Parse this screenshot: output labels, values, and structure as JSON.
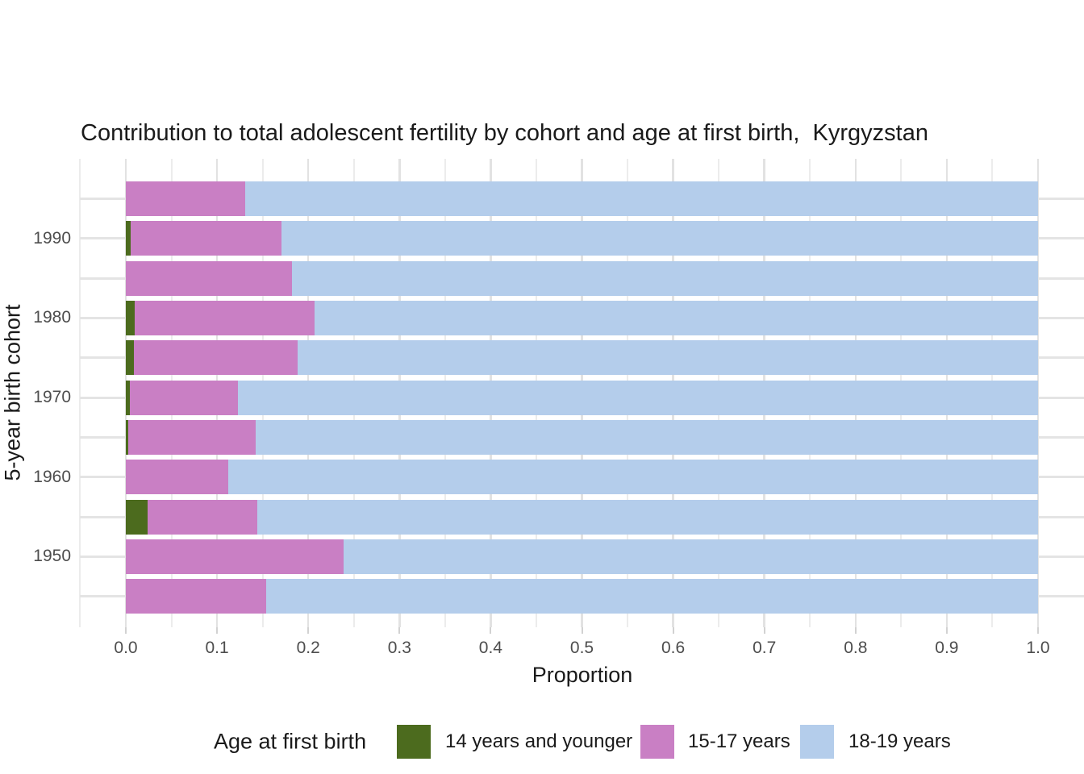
{
  "chart_data": {
    "type": "bar",
    "orientation": "horizontal",
    "stacked": true,
    "title": "Contribution to total adolescent fertility by cohort and age at first birth,  Kyrgyzstan",
    "xlabel": "Proportion",
    "ylabel": "5-year birth cohort",
    "xlim": [
      0.0,
      1.0
    ],
    "x_tick_labels": [
      "0.0",
      "0.1",
      "0.2",
      "0.3",
      "0.4",
      "0.5",
      "0.6",
      "0.7",
      "0.8",
      "0.9",
      "1.0"
    ],
    "grid": "major and minor vertical, major horizontal per bar",
    "categories_top_to_bottom": [
      "",
      "1990",
      "",
      "1980",
      "",
      "1970",
      "",
      "1960",
      "",
      "1950",
      ""
    ],
    "series": [
      {
        "name": "14 years and younger",
        "color": "#4C6B1E",
        "values": [
          0,
          0.005,
          0,
          0.01,
          0.009,
          0.004,
          0.003,
          0,
          0.024,
          0,
          0
        ]
      },
      {
        "name": "15-17 years",
        "color": "#C97FC4",
        "values": [
          0.131,
          0.166,
          0.182,
          0.197,
          0.179,
          0.119,
          0.139,
          0.112,
          0.12,
          0.239,
          0.154
        ]
      },
      {
        "name": "18-19 years",
        "color": "#B4CDEB",
        "values": [
          0.869,
          0.829,
          0.818,
          0.793,
          0.812,
          0.877,
          0.858,
          0.888,
          0.856,
          0.761,
          0.846
        ]
      }
    ],
    "legend": {
      "title": "Age at first birth",
      "position": "bottom"
    }
  }
}
